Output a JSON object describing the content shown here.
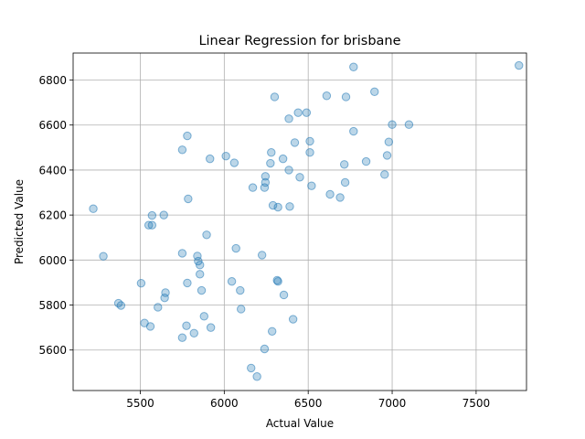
{
  "chart_data": {
    "type": "scatter",
    "title": "Linear Regression for brisbane",
    "xlabel": "Actual Value",
    "ylabel": "Predicted Value",
    "xlim": [
      5100,
      7800
    ],
    "ylim": [
      5420,
      6920
    ],
    "xticks": [
      5500,
      6000,
      6500,
      7000,
      7500
    ],
    "yticks": [
      5600,
      5800,
      6000,
      6200,
      6400,
      6600,
      6800
    ],
    "grid": true,
    "points": [
      {
        "x": 5220,
        "y": 6228
      },
      {
        "x": 5280,
        "y": 6017
      },
      {
        "x": 5370,
        "y": 5808
      },
      {
        "x": 5385,
        "y": 5798
      },
      {
        "x": 5505,
        "y": 5897
      },
      {
        "x": 5525,
        "y": 5720
      },
      {
        "x": 5550,
        "y": 6155
      },
      {
        "x": 5560,
        "y": 5705
      },
      {
        "x": 5570,
        "y": 6198
      },
      {
        "x": 5570,
        "y": 6155
      },
      {
        "x": 5605,
        "y": 5790
      },
      {
        "x": 5640,
        "y": 6200
      },
      {
        "x": 5645,
        "y": 5832
      },
      {
        "x": 5650,
        "y": 5855
      },
      {
        "x": 5750,
        "y": 6490
      },
      {
        "x": 5750,
        "y": 6030
      },
      {
        "x": 5750,
        "y": 5655
      },
      {
        "x": 5775,
        "y": 5708
      },
      {
        "x": 5780,
        "y": 6552
      },
      {
        "x": 5780,
        "y": 5898
      },
      {
        "x": 5785,
        "y": 6272
      },
      {
        "x": 5820,
        "y": 5675
      },
      {
        "x": 5840,
        "y": 6018
      },
      {
        "x": 5845,
        "y": 5995
      },
      {
        "x": 5855,
        "y": 5978
      },
      {
        "x": 5855,
        "y": 5937
      },
      {
        "x": 5865,
        "y": 5865
      },
      {
        "x": 5880,
        "y": 5750
      },
      {
        "x": 5895,
        "y": 6112
      },
      {
        "x": 5915,
        "y": 6450
      },
      {
        "x": 5920,
        "y": 5700
      },
      {
        "x": 6010,
        "y": 6462
      },
      {
        "x": 6045,
        "y": 5905
      },
      {
        "x": 6060,
        "y": 6432
      },
      {
        "x": 6070,
        "y": 6052
      },
      {
        "x": 6095,
        "y": 5865
      },
      {
        "x": 6100,
        "y": 5782
      },
      {
        "x": 6160,
        "y": 5520
      },
      {
        "x": 6170,
        "y": 6322
      },
      {
        "x": 6195,
        "y": 5482
      },
      {
        "x": 6225,
        "y": 6022
      },
      {
        "x": 6240,
        "y": 5605
      },
      {
        "x": 6240,
        "y": 6322
      },
      {
        "x": 6245,
        "y": 6345
      },
      {
        "x": 6245,
        "y": 6372
      },
      {
        "x": 6275,
        "y": 6430
      },
      {
        "x": 6280,
        "y": 6478
      },
      {
        "x": 6285,
        "y": 5683
      },
      {
        "x": 6290,
        "y": 6243
      },
      {
        "x": 6300,
        "y": 6725
      },
      {
        "x": 6315,
        "y": 5910
      },
      {
        "x": 6320,
        "y": 5905
      },
      {
        "x": 6320,
        "y": 6235
      },
      {
        "x": 6350,
        "y": 6450
      },
      {
        "x": 6355,
        "y": 5845
      },
      {
        "x": 6385,
        "y": 6400
      },
      {
        "x": 6385,
        "y": 6628
      },
      {
        "x": 6390,
        "y": 6238
      },
      {
        "x": 6410,
        "y": 5737
      },
      {
        "x": 6420,
        "y": 6522
      },
      {
        "x": 6440,
        "y": 6655
      },
      {
        "x": 6450,
        "y": 6368
      },
      {
        "x": 6490,
        "y": 6655
      },
      {
        "x": 6510,
        "y": 6478
      },
      {
        "x": 6510,
        "y": 6528
      },
      {
        "x": 6520,
        "y": 6330
      },
      {
        "x": 6610,
        "y": 6730
      },
      {
        "x": 6630,
        "y": 6292
      },
      {
        "x": 6690,
        "y": 6278
      },
      {
        "x": 6715,
        "y": 6425
      },
      {
        "x": 6720,
        "y": 6345
      },
      {
        "x": 6725,
        "y": 6725
      },
      {
        "x": 6770,
        "y": 6572
      },
      {
        "x": 6770,
        "y": 6858
      },
      {
        "x": 6845,
        "y": 6438
      },
      {
        "x": 6895,
        "y": 6748
      },
      {
        "x": 6955,
        "y": 6380
      },
      {
        "x": 6970,
        "y": 6465
      },
      {
        "x": 6980,
        "y": 6525
      },
      {
        "x": 7000,
        "y": 6602
      },
      {
        "x": 7100,
        "y": 6602
      },
      {
        "x": 7755,
        "y": 6865
      }
    ]
  }
}
